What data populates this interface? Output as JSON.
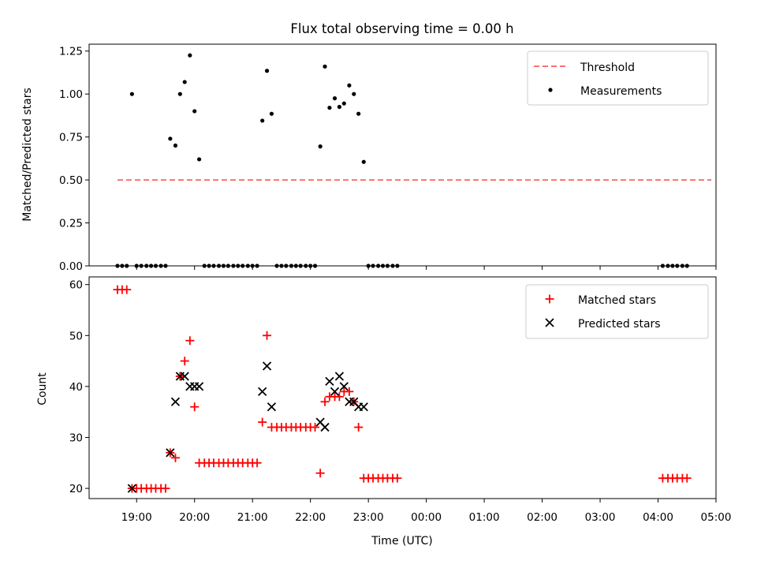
{
  "chart_data": [
    {
      "type": "scatter",
      "title": "Flux total observing time = 0.00 h",
      "xlabel": "",
      "ylabel": "Matched/Predicted stars",
      "xlim": [
        18.18,
        29.0
      ],
      "ylim": [
        0,
        1.29
      ],
      "yticks": [
        0,
        0.25,
        0.5,
        0.75,
        1.0,
        1.25
      ],
      "ytick_labels": [
        "0.00",
        "0.25",
        "0.50",
        "0.75",
        "1.00",
        "1.25"
      ],
      "legend_position": "top-right",
      "threshold": {
        "name": "Threshold",
        "y": 0.5,
        "x": [
          18.67,
          28.92
        ],
        "color": "#ff7070"
      },
      "series": [
        {
          "name": "Measurements",
          "color": "#000000",
          "marker": "dot",
          "x": [
            18.67,
            18.75,
            18.83,
            18.92,
            19.0,
            19.08,
            19.17,
            19.25,
            19.33,
            19.42,
            19.5,
            19.58,
            19.67,
            19.75,
            19.83,
            19.92,
            20.0,
            20.08,
            20.17,
            20.25,
            20.33,
            20.42,
            20.5,
            20.58,
            20.67,
            20.75,
            20.83,
            20.92,
            21.0,
            21.08,
            21.17,
            21.25,
            21.33,
            21.42,
            21.5,
            21.58,
            21.67,
            21.75,
            21.83,
            21.92,
            22.0,
            22.08,
            22.17,
            22.25,
            22.33,
            22.42,
            22.5,
            22.58,
            22.67,
            22.75,
            22.83,
            22.92,
            23.0,
            23.08,
            23.17,
            23.25,
            23.33,
            23.42,
            23.5,
            28.08,
            28.17,
            28.25,
            28.33,
            28.42,
            28.5
          ],
          "y": [
            0,
            0,
            0,
            1.0,
            0,
            0,
            0,
            0,
            0,
            0,
            0,
            0.74,
            0.7,
            1.0,
            1.07,
            1.225,
            0.9,
            0.62,
            0,
            0,
            0,
            0,
            0,
            0,
            0,
            0,
            0,
            0,
            0,
            0,
            0.845,
            1.135,
            0.885,
            0,
            0,
            0,
            0,
            0,
            0,
            0,
            0,
            0,
            0.695,
            1.16,
            0.92,
            0.975,
            0.925,
            0.945,
            1.05,
            1.0,
            0.885,
            0.605,
            0,
            0,
            0,
            0,
            0,
            0,
            0,
            0,
            0,
            0,
            0,
            0,
            0
          ]
        }
      ]
    },
    {
      "type": "scatter",
      "title": "",
      "xlabel": "Time (UTC)",
      "ylabel": "Count",
      "xlim": [
        18.18,
        29.0
      ],
      "ylim": [
        18,
        61.5
      ],
      "yticks": [
        20,
        30,
        40,
        50,
        60
      ],
      "ytick_labels": [
        "20",
        "30",
        "40",
        "50",
        "60"
      ],
      "xticks": [
        19,
        20,
        21,
        22,
        23,
        24,
        25,
        26,
        27,
        28,
        29
      ],
      "xtick_labels": [
        "19:00",
        "20:00",
        "21:00",
        "22:00",
        "23:00",
        "00:00",
        "01:00",
        "02:00",
        "03:00",
        "04:00",
        "05:00"
      ],
      "legend_position": "top-right",
      "series": [
        {
          "name": "Matched stars",
          "color": "#ff0000",
          "marker": "plus",
          "x": [
            18.67,
            18.75,
            18.83,
            18.92,
            19.0,
            19.08,
            19.17,
            19.25,
            19.33,
            19.42,
            19.5,
            19.58,
            19.67,
            19.75,
            19.83,
            19.92,
            20.0,
            20.08,
            20.17,
            20.25,
            20.33,
            20.42,
            20.5,
            20.58,
            20.67,
            20.75,
            20.83,
            20.92,
            21.0,
            21.08,
            21.17,
            21.25,
            21.33,
            21.42,
            21.5,
            21.58,
            21.67,
            21.75,
            21.83,
            21.92,
            22.0,
            22.08,
            22.17,
            22.25,
            22.33,
            22.42,
            22.5,
            22.58,
            22.67,
            22.75,
            22.83,
            22.92,
            23.0,
            23.08,
            23.17,
            23.25,
            23.33,
            23.42,
            23.5,
            28.08,
            28.17,
            28.25,
            28.33,
            28.42,
            28.5
          ],
          "y": [
            59,
            59,
            59,
            20,
            20,
            20,
            20,
            20,
            20,
            20,
            20,
            27,
            26,
            42,
            45,
            49,
            36,
            25,
            25,
            25,
            25,
            25,
            25,
            25,
            25,
            25,
            25,
            25,
            25,
            25,
            33,
            50,
            32,
            32,
            32,
            32,
            32,
            32,
            32,
            32,
            32,
            32,
            23,
            37,
            38,
            38,
            38,
            39,
            39,
            37,
            32,
            22,
            22,
            22,
            22,
            22,
            22,
            22,
            22,
            22,
            22,
            22,
            22,
            22,
            22
          ]
        },
        {
          "name": "Predicted stars",
          "color": "#000000",
          "marker": "x",
          "x": [
            18.92,
            19.58,
            19.67,
            19.75,
            19.83,
            19.92,
            20.0,
            20.08,
            21.17,
            21.25,
            21.33,
            22.17,
            22.25,
            22.33,
            22.42,
            22.5,
            22.58,
            22.67,
            22.75,
            22.83,
            22.92
          ],
          "y": [
            20,
            27,
            37,
            42,
            42,
            40,
            40,
            40,
            39,
            44,
            36,
            33,
            32,
            41,
            39,
            42,
            40,
            37,
            37,
            36,
            36
          ]
        }
      ]
    }
  ]
}
